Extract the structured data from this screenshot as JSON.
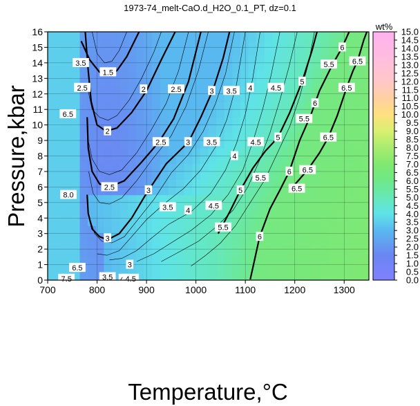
{
  "chart_data": {
    "type": "contour",
    "title": "1973-74_melt-CaO.d_H2O_0.1_PT, dz=0.1",
    "xlabel": "Temperature,°C",
    "ylabel": "Pressure,kbar",
    "xlim": [
      700,
      1350
    ],
    "ylim": [
      0,
      16
    ],
    "xticks": [
      700,
      800,
      900,
      1000,
      1100,
      1200,
      1300
    ],
    "yticks": [
      0,
      1,
      2,
      3,
      4,
      5,
      6,
      7,
      8,
      9,
      10,
      11,
      12,
      13,
      14,
      15,
      16
    ],
    "grid": true,
    "colorbar": {
      "label": "wt%",
      "min": 0.0,
      "max": 15.0,
      "ticks": [
        "0.0",
        "0.5",
        "1.0",
        "1.5",
        "2.0",
        "2.5",
        "3.0",
        "3.5",
        "4.0",
        "4.5",
        "5.0",
        "5.5",
        "6.0",
        "6.5",
        "7.0",
        "7.5",
        "8.0",
        "8.5",
        "9.0",
        "9.5",
        "10.0",
        "10.5",
        "11.0",
        "11.5",
        "12.0",
        "12.5",
        "13.0",
        "13.5",
        "14.0",
        "14.5",
        "15.0"
      ],
      "stops": [
        {
          "v": 0.0,
          "color": "#8080ff"
        },
        {
          "v": 1.5,
          "color": "#6a86f2"
        },
        {
          "v": 3.0,
          "color": "#5ab8f0"
        },
        {
          "v": 4.0,
          "color": "#5fe3e8"
        },
        {
          "v": 5.0,
          "color": "#66e8b8"
        },
        {
          "v": 6.0,
          "color": "#70e888"
        },
        {
          "v": 7.0,
          "color": "#80e870"
        },
        {
          "v": 8.0,
          "color": "#a8ec70"
        },
        {
          "v": 9.0,
          "color": "#d8f070"
        },
        {
          "v": 10.0,
          "color": "#ffe080"
        },
        {
          "v": 11.0,
          "color": "#ffd0a0"
        },
        {
          "v": 12.0,
          "color": "#ffc8c8"
        },
        {
          "v": 13.5,
          "color": "#ffbce0"
        },
        {
          "v": 15.0,
          "color": "#ffb0f0"
        }
      ]
    },
    "contour_labels": [
      {
        "T": 822,
        "P": 13.4,
        "label": "1.5"
      },
      {
        "T": 894,
        "P": 12.3,
        "label": "2"
      },
      {
        "T": 821,
        "P": 9.6,
        "label": "2"
      },
      {
        "T": 960,
        "P": 12.3,
        "label": "2.5"
      },
      {
        "T": 929,
        "P": 8.9,
        "label": "2.5"
      },
      {
        "T": 825,
        "P": 6.0,
        "label": "2.5"
      },
      {
        "T": 1032,
        "P": 12.2,
        "label": "3"
      },
      {
        "T": 984,
        "P": 8.9,
        "label": "3"
      },
      {
        "T": 904,
        "P": 5.8,
        "label": "3"
      },
      {
        "T": 821,
        "P": 2.7,
        "label": "3"
      },
      {
        "T": 1072,
        "P": 12.2,
        "label": "3.5"
      },
      {
        "T": 1032,
        "P": 8.9,
        "label": "3.5"
      },
      {
        "T": 943,
        "P": 4.7,
        "label": "3.5"
      },
      {
        "T": 1110,
        "P": 12.4,
        "label": "4"
      },
      {
        "T": 1078,
        "P": 8.0,
        "label": "4"
      },
      {
        "T": 984,
        "P": 4.5,
        "label": "4"
      },
      {
        "T": 1162,
        "P": 12.4,
        "label": "4.5"
      },
      {
        "T": 1121,
        "P": 8.9,
        "label": "4.5"
      },
      {
        "T": 1036,
        "P": 4.8,
        "label": "4.5"
      },
      {
        "T": 1215,
        "P": 12.8,
        "label": "5"
      },
      {
        "T": 1166,
        "P": 9.2,
        "label": "5"
      },
      {
        "T": 1090,
        "P": 5.8,
        "label": "5"
      },
      {
        "T": 1269,
        "P": 13.9,
        "label": "5.5"
      },
      {
        "T": 1219,
        "P": 10.4,
        "label": "5.5"
      },
      {
        "T": 1131,
        "P": 6.6,
        "label": "5.5"
      },
      {
        "T": 1055,
        "P": 3.4,
        "label": "5.5"
      },
      {
        "T": 1296,
        "P": 15.0,
        "label": "6"
      },
      {
        "T": 1241,
        "P": 11.4,
        "label": "6"
      },
      {
        "T": 1189,
        "P": 7.0,
        "label": "6"
      },
      {
        "T": 1129,
        "P": 2.8,
        "label": "6"
      },
      {
        "T": 1327,
        "P": 14.1,
        "label": "6.5"
      },
      {
        "T": 1305,
        "P": 12.4,
        "label": "6.5"
      },
      {
        "T": 1268,
        "P": 9.2,
        "label": "6.5"
      },
      {
        "T": 1226,
        "P": 7.1,
        "label": "6.5"
      },
      {
        "T": 1204,
        "P": 5.9,
        "label": "6.5"
      },
      {
        "T": 866,
        "P": 1.0,
        "label": "3"
      },
      {
        "T": 821,
        "P": 0.2,
        "label": "3.5"
      },
      {
        "T": 851,
        "P": 0.1,
        "label": "4"
      },
      {
        "T": 868,
        "P": 0.1,
        "label": "4.5"
      },
      {
        "T": 760,
        "P": 0.8,
        "label": "6.5"
      },
      {
        "T": 738,
        "P": 0.1,
        "label": "7.5"
      },
      {
        "T": 767,
        "P": 14.0,
        "label": "3.5"
      },
      {
        "T": 770,
        "P": 12.4,
        "label": "2.5"
      },
      {
        "T": 741,
        "P": 10.7,
        "label": "6.5"
      },
      {
        "T": 742,
        "P": 5.5,
        "label": "8.0"
      }
    ],
    "bold_contours": [
      {
        "label": "1.5",
        "points": [
          [
            768,
            15.4
          ],
          [
            785,
            14.2
          ],
          [
            805,
            13.4
          ],
          [
            822,
            13.2
          ],
          [
            840,
            13.5
          ],
          [
            860,
            14.4
          ],
          [
            885,
            16.0
          ]
        ]
      },
      {
        "label": "2",
        "points": [
          [
            776,
            16.0
          ],
          [
            782,
            13.5
          ],
          [
            788,
            11.5
          ],
          [
            800,
            10.0
          ],
          [
            818,
            9.6
          ],
          [
            840,
            9.8
          ],
          [
            870,
            10.8
          ],
          [
            900,
            12.2
          ],
          [
            930,
            14.2
          ],
          [
            958,
            16.0
          ]
        ]
      },
      {
        "label": "2.5",
        "points": [
          [
            780,
            10.5
          ],
          [
            782,
            8.5
          ],
          [
            790,
            7.0
          ],
          [
            805,
            6.2
          ],
          [
            825,
            6.0
          ],
          [
            855,
            6.4
          ],
          [
            890,
            7.6
          ],
          [
            925,
            8.9
          ],
          [
            955,
            10.4
          ],
          [
            985,
            12.8
          ],
          [
            1010,
            16.0
          ]
        ]
      },
      {
        "label": "3",
        "points": [
          [
            780,
            5.5
          ],
          [
            782,
            4.3
          ],
          [
            790,
            3.3
          ],
          [
            805,
            2.8
          ],
          [
            821,
            2.6
          ],
          [
            845,
            3.0
          ],
          [
            870,
            4.0
          ],
          [
            900,
            5.6
          ],
          [
            940,
            7.5
          ],
          [
            985,
            8.9
          ],
          [
            1010,
            10.5
          ],
          [
            1035,
            12.3
          ],
          [
            1055,
            14.3
          ],
          [
            1068,
            16.0
          ]
        ]
      },
      {
        "label": "5",
        "points": [
          [
            1045,
            3.0
          ],
          [
            1070,
            4.5
          ],
          [
            1090,
            5.8
          ],
          [
            1115,
            7.2
          ],
          [
            1140,
            8.3
          ],
          [
            1166,
            9.2
          ],
          [
            1190,
            10.8
          ],
          [
            1215,
            12.8
          ],
          [
            1235,
            14.8
          ],
          [
            1245,
            16.0
          ]
        ]
      },
      {
        "label": "6",
        "points": [
          [
            1110,
            0.05
          ],
          [
            1118,
            1.2
          ],
          [
            1129,
            2.8
          ],
          [
            1150,
            4.6
          ],
          [
            1170,
            5.8
          ],
          [
            1189,
            7.0
          ],
          [
            1210,
            9.0
          ],
          [
            1232,
            10.6
          ],
          [
            1250,
            12.2
          ],
          [
            1275,
            13.8
          ],
          [
            1296,
            15.0
          ],
          [
            1310,
            16.0
          ]
        ]
      },
      {
        "label": "6.5",
        "points": [
          [
            1190,
            5.8
          ],
          [
            1204,
            6.3
          ],
          [
            1226,
            7.1
          ],
          [
            1250,
            8.2
          ],
          [
            1268,
            9.2
          ],
          [
            1286,
            10.6
          ],
          [
            1305,
            12.4
          ],
          [
            1318,
            13.5
          ],
          [
            1327,
            14.1
          ],
          [
            1340,
            15.5
          ],
          [
            1346,
            16.0
          ]
        ]
      }
    ],
    "thin_contours": [
      {
        "points": [
          [
            790,
            16.0
          ],
          [
            800,
            14.6
          ],
          [
            815,
            14.0
          ],
          [
            830,
            14.1
          ],
          [
            845,
            14.8
          ],
          [
            860,
            16.0
          ]
        ]
      },
      {
        "points": [
          [
            780,
            12.5
          ],
          [
            790,
            11.0
          ],
          [
            805,
            10.5
          ],
          [
            822,
            10.3
          ],
          [
            840,
            10.6
          ],
          [
            865,
            11.6
          ],
          [
            890,
            13.0
          ],
          [
            915,
            14.7
          ],
          [
            930,
            16.0
          ]
        ]
      },
      {
        "points": [
          [
            782,
            9.0
          ],
          [
            790,
            7.8
          ],
          [
            805,
            7.0
          ],
          [
            825,
            6.8
          ],
          [
            850,
            7.1
          ],
          [
            880,
            8.2
          ],
          [
            910,
            9.7
          ],
          [
            940,
            11.4
          ],
          [
            965,
            13.5
          ],
          [
            985,
            16.0
          ]
        ]
      },
      {
        "points": [
          [
            783,
            7.0
          ],
          [
            792,
            5.6
          ],
          [
            805,
            5.0
          ],
          [
            825,
            4.9
          ],
          [
            850,
            5.3
          ],
          [
            880,
            6.4
          ],
          [
            912,
            7.8
          ],
          [
            950,
            9.3
          ],
          [
            980,
            11.2
          ],
          [
            1005,
            13.5
          ],
          [
            1025,
            16.0
          ]
        ]
      },
      {
        "points": [
          [
            785,
            4.0
          ],
          [
            795,
            3.0
          ],
          [
            810,
            2.5
          ],
          [
            830,
            2.4
          ],
          [
            855,
            2.8
          ],
          [
            880,
            3.8
          ],
          [
            915,
            5.2
          ],
          [
            950,
            6.9
          ],
          [
            985,
            8.1
          ],
          [
            1015,
            9.6
          ],
          [
            1040,
            11.4
          ],
          [
            1060,
            13.3
          ],
          [
            1078,
            16.0
          ]
        ]
      },
      {
        "points": [
          [
            800,
            1.7
          ],
          [
            820,
            1.6
          ],
          [
            845,
            1.9
          ],
          [
            870,
            2.8
          ],
          [
            900,
            3.9
          ],
          [
            935,
            4.9
          ],
          [
            975,
            5.9
          ],
          [
            1010,
            7.1
          ],
          [
            1040,
            8.6
          ],
          [
            1062,
            10.3
          ],
          [
            1082,
            12.6
          ],
          [
            1100,
            16.0
          ]
        ]
      },
      {
        "points": [
          [
            825,
            1.3
          ],
          [
            850,
            1.4
          ],
          [
            880,
            1.9
          ],
          [
            910,
            2.7
          ],
          [
            945,
            3.6
          ],
          [
            990,
            4.4
          ],
          [
            1030,
            5.6
          ],
          [
            1060,
            7.1
          ],
          [
            1082,
            8.8
          ],
          [
            1100,
            10.7
          ],
          [
            1115,
            13.0
          ],
          [
            1130,
            16.0
          ]
        ]
      },
      {
        "points": [
          [
            880,
            1.2
          ],
          [
            915,
            1.7
          ],
          [
            950,
            2.4
          ],
          [
            990,
            3.2
          ],
          [
            1030,
            4.2
          ],
          [
            1065,
            5.5
          ],
          [
            1095,
            7.1
          ],
          [
            1115,
            8.9
          ],
          [
            1135,
            11.0
          ],
          [
            1152,
            13.2
          ],
          [
            1170,
            16.0
          ]
        ]
      },
      {
        "points": [
          [
            930,
            1.2
          ],
          [
            965,
            1.8
          ],
          [
            1005,
            2.5
          ],
          [
            1040,
            3.4
          ],
          [
            1075,
            4.5
          ],
          [
            1105,
            6.0
          ],
          [
            1130,
            7.8
          ],
          [
            1150,
            9.5
          ],
          [
            1170,
            11.6
          ],
          [
            1188,
            13.7
          ],
          [
            1205,
            16.0
          ]
        ]
      },
      {
        "points": [
          [
            990,
            0.9
          ],
          [
            1020,
            1.6
          ],
          [
            1050,
            2.4
          ],
          [
            1080,
            3.5
          ],
          [
            1110,
            5.0
          ],
          [
            1140,
            6.5
          ],
          [
            1165,
            8.2
          ],
          [
            1190,
            9.9
          ],
          [
            1210,
            11.8
          ],
          [
            1228,
            14.0
          ],
          [
            1240,
            16.0
          ]
        ]
      }
    ]
  }
}
